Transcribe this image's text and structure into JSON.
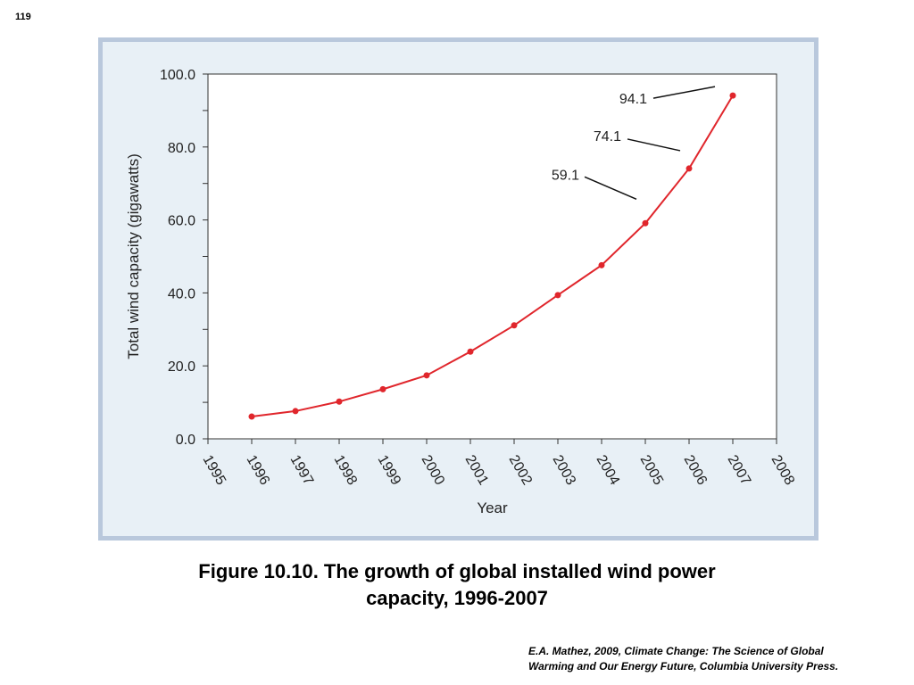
{
  "page": {
    "number": "119"
  },
  "caption": {
    "line1": "Figure 10.10.  The growth of global installed wind power",
    "line2": "capacity, 1996-2007"
  },
  "source": {
    "line1": "E.A. Mathez, 2009, Climate Change: The Science of Global",
    "line2": "Warming and Our Energy Future, Columbia University Press."
  },
  "colors": {
    "line": "#e0262c",
    "frame_background": "#e8f0f6",
    "frame_border": "#b9c8dc",
    "plot_background": "#ffffff"
  },
  "chart_data": {
    "type": "line",
    "title": "",
    "xlabel": "Year",
    "ylabel": "Total wind capacity (gigawatts)",
    "xlim": [
      1995,
      2008
    ],
    "ylim": [
      0,
      100
    ],
    "x_ticks": [
      "1995",
      "1996",
      "1997",
      "1998",
      "1999",
      "2000",
      "2001",
      "2002",
      "2003",
      "2004",
      "2005",
      "2006",
      "2007",
      "2008"
    ],
    "y_ticks": [
      "0.0",
      "20.0",
      "40.0",
      "60.0",
      "80.0",
      "100.0"
    ],
    "y_minor_step": 10,
    "grid": false,
    "series": [
      {
        "x": [
          1996,
          1997,
          1998,
          1999,
          2000,
          2001,
          2002,
          2003,
          2004,
          2005,
          2006,
          2007
        ],
        "values": [
          6.1,
          7.6,
          10.2,
          13.6,
          17.4,
          23.9,
          31.1,
          39.4,
          47.6,
          59.1,
          74.1,
          94.1
        ]
      }
    ],
    "annotations": [
      {
        "text": "94.1",
        "x": 2007,
        "y": 94.1
      },
      {
        "text": "74.1",
        "x": 2006,
        "y": 74.1
      },
      {
        "text": "59.1",
        "x": 2005,
        "y": 59.1
      }
    ]
  }
}
